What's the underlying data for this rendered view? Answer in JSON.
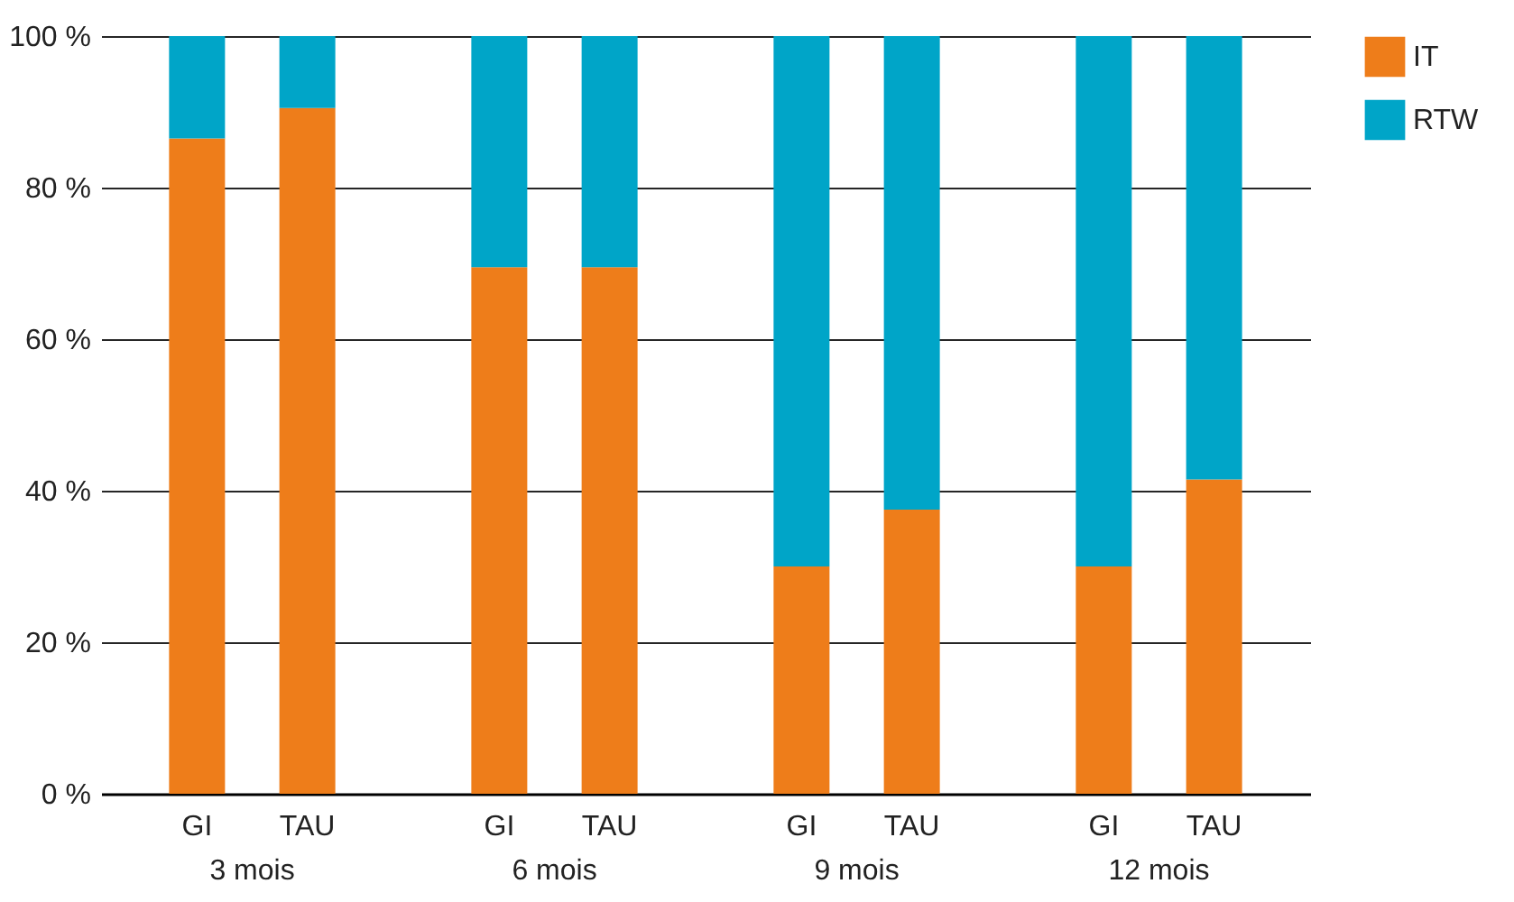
{
  "chart_data": {
    "type": "bar",
    "stacked": true,
    "categories": [
      "GI",
      "TAU",
      "GI",
      "TAU",
      "GI",
      "TAU",
      "GI",
      "TAU"
    ],
    "annotations": [
      "3 mois",
      "6 mois",
      "9 mois",
      "12 mois"
    ],
    "series": [
      {
        "name": "IT",
        "color": "#ee7d1a",
        "values": [
          86.5,
          90.5,
          69.5,
          69.5,
          30,
          37.5,
          30,
          41.5
        ]
      },
      {
        "name": "RTW",
        "color": "#00a5c8",
        "values": [
          13.5,
          9.5,
          30.5,
          30.5,
          70,
          62.5,
          70,
          58.5
        ]
      }
    ],
    "ylim": [
      0,
      100
    ],
    "yticks": [
      {
        "value": 0,
        "label": "0 %"
      },
      {
        "value": 20,
        "label": "20 %"
      },
      {
        "value": 40,
        "label": "40 %"
      },
      {
        "value": 60,
        "label": "60 %"
      },
      {
        "value": 80,
        "label": "80 %"
      },
      {
        "value": 100,
        "label": "100 %"
      }
    ],
    "grid": "y",
    "legend": "top right"
  }
}
